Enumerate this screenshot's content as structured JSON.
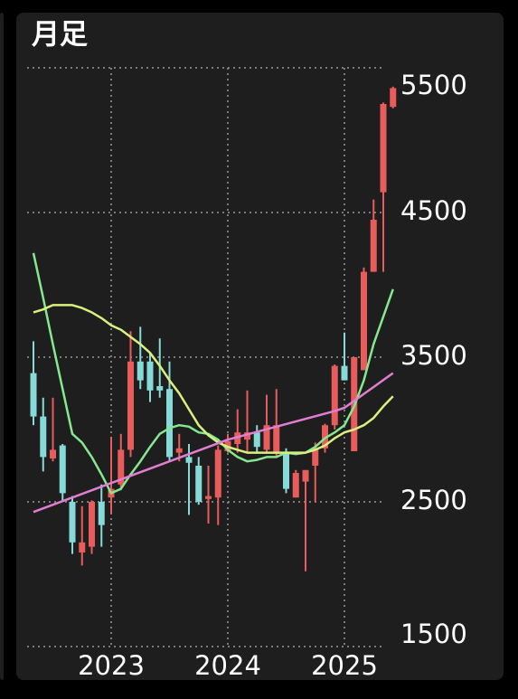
{
  "chart_data": {
    "type": "candlestick",
    "title": "月足",
    "categories": [
      null,
      null,
      null,
      null,
      null,
      null,
      null,
      null,
      "2023",
      null,
      null,
      null,
      null,
      null,
      null,
      null,
      null,
      null,
      null,
      null,
      "2024",
      null,
      null,
      null,
      null,
      null,
      null,
      null,
      null,
      null,
      null,
      null,
      "2025",
      null,
      null,
      null,
      null,
      null
    ],
    "open": [
      3390,
      3090,
      2800,
      2890,
      2500,
      2150,
      2190,
      2500,
      2530,
      2620,
      2860,
      3470,
      3470,
      3300,
      3280,
      2840,
      2810,
      2750,
      2520,
      2530,
      2850,
      2900,
      2930,
      2980,
      2860,
      2840,
      2840,
      2530,
      2640,
      2750,
      2870,
      3030,
      3440,
      2850,
      3410,
      4090,
      4640,
      5230
    ],
    "high": [
      3610,
      3220,
      3220,
      2900,
      2540,
      2470,
      2510,
      2620,
      2950,
      2970,
      3680,
      3710,
      3530,
      3630,
      3470,
      2970,
      2900,
      2810,
      2750,
      2890,
      2970,
      3140,
      3270,
      3030,
      3240,
      3280,
      2870,
      2720,
      2720,
      2910,
      3040,
      3450,
      3670,
      3500,
      4120,
      4590,
      5260,
      5370
    ],
    "low": [
      3030,
      2710,
      2780,
      2500,
      2140,
      2060,
      2140,
      2190,
      2420,
      2580,
      2810,
      3280,
      3190,
      3220,
      2780,
      2780,
      2410,
      2480,
      2350,
      2340,
      2840,
      2840,
      2840,
      2840,
      2840,
      2810,
      2560,
      2530,
      2020,
      2500,
      2840,
      3000,
      3340,
      2850,
      3410,
      4090,
      4090,
      5220
    ],
    "close": [
      3090,
      2810,
      2860,
      2560,
      2220,
      2220,
      2500,
      2340,
      2590,
      2860,
      3470,
      3340,
      3270,
      3270,
      2810,
      2870,
      2770,
      2500,
      2540,
      2860,
      2920,
      2980,
      2980,
      2880,
      3030,
      3030,
      2590,
      2700,
      2720,
      2870,
      3030,
      3440,
      3340,
      3500,
      4090,
      4450,
      5250,
      5360
    ],
    "up_color": "#e85c5c",
    "down_color": "#86dbd8",
    "lines": [
      {
        "color": "#86e88e",
        "values": [
          4220,
          3910,
          3590,
          3280,
          2970,
          2910,
          2810,
          2690,
          2560,
          2590,
          2690,
          2780,
          2880,
          2970,
          3010,
          3030,
          3020,
          2980,
          2970,
          2930,
          2860,
          2810,
          2780,
          2790,
          2810,
          2810,
          2840,
          2830,
          2840,
          2880,
          2940,
          2980,
          3030,
          3160,
          3340,
          3590,
          3780,
          3970
        ]
      },
      {
        "color": "#d9f07e",
        "values": [
          3810,
          3830,
          3860,
          3860,
          3860,
          3840,
          3810,
          3770,
          3720,
          3690,
          3640,
          3590,
          3530,
          3440,
          3340,
          3250,
          3140,
          3030,
          2960,
          2910,
          2880,
          2860,
          2840,
          2840,
          2840,
          2840,
          2840,
          2840,
          2840,
          2860,
          2890,
          2940,
          2980,
          3000,
          3030,
          3080,
          3160,
          3230
        ]
      },
      {
        "color": "#e07fd2",
        "values": [
          2430,
          2455,
          2480,
          2505,
          2530,
          2555,
          2580,
          2605,
          2630,
          2655,
          2680,
          2705,
          2730,
          2755,
          2780,
          2805,
          2830,
          2855,
          2880,
          2905,
          2930,
          2948,
          2966,
          2984,
          3002,
          3020,
          3038,
          3056,
          3074,
          3092,
          3110,
          3128,
          3150,
          3198,
          3246,
          3294,
          3342,
          3390
        ]
      }
    ],
    "ylim": [
      1500,
      5500
    ],
    "yticks": [
      1500,
      2500,
      3500,
      4500,
      5500
    ],
    "grid": true
  }
}
